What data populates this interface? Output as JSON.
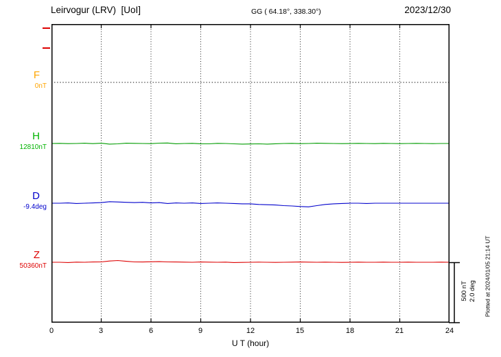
{
  "chart_data": {
    "type": "line",
    "title": "Leirvogur (LRV)  [UoI]",
    "station_coords": "GG ( 64.18°, 338.30°)",
    "date": "2023/12/30",
    "xlabel": "U T (hour)",
    "xlim": [
      0,
      24
    ],
    "x_ticks": [
      0,
      3,
      6,
      9,
      12,
      15,
      18,
      21,
      24
    ],
    "x_step_hours": 0.5,
    "grid": "dotted vertical lines every 3 hours",
    "legend_position": "left margin channel labels",
    "plot_note": "Plotted at 2024/01/05 21:14 UT",
    "scale_bar": {
      "nT": 500,
      "deg": 2.0,
      "label_nT": "500 nT",
      "label_deg": "2.0 deg"
    },
    "marks": {
      "left_axis_tick_color": "#dd0000"
    },
    "values_are": "deviation from baseline_value, sampled every 0.5 hour from 0 to 24 UT",
    "series": [
      {
        "name": "F",
        "unit": "nT",
        "baseline_value": 0,
        "baseline_label": "0nT",
        "label_color": "#ffa500",
        "trace_color": "#000000",
        "trace_style": "dotted",
        "values": [
          0,
          0,
          0,
          0,
          0,
          0,
          0,
          0,
          0,
          0,
          0,
          0,
          0,
          0,
          0,
          0,
          0,
          0,
          0,
          0,
          0,
          0,
          0,
          0,
          0,
          0,
          0,
          0,
          0,
          0,
          0,
          0,
          0,
          0,
          0,
          0,
          0,
          0,
          0,
          0,
          0,
          0,
          0,
          0,
          0,
          0,
          0,
          0,
          0
        ]
      },
      {
        "name": "H",
        "unit": "nT",
        "baseline_value": 12810,
        "baseline_label": "12810nT",
        "label_color": "#00b300",
        "trace_color": "#009c00",
        "trace_style": "solid",
        "values": [
          0,
          1,
          -1,
          0,
          2,
          -1,
          2,
          -5,
          -3,
          2,
          1,
          0,
          -1,
          3,
          4,
          -2,
          0,
          1,
          -2,
          -3,
          1,
          0,
          -3,
          -5,
          -4,
          -3,
          -5,
          -2,
          0,
          1,
          -1,
          0,
          2,
          1,
          0,
          -1,
          0,
          1,
          0,
          -1,
          1,
          0,
          -1,
          0,
          1,
          0,
          -1,
          0,
          0
        ]
      },
      {
        "name": "D",
        "unit": "deg",
        "baseline_value": -9.4,
        "baseline_label": "-9.4deg",
        "label_color": "#0000cc",
        "trace_color": "#0000cc",
        "trace_style": "solid",
        "values": [
          0,
          0,
          0.01,
          -0.01,
          0,
          0.01,
          0.02,
          0.05,
          0.04,
          0.03,
          0.02,
          0.03,
          0.01,
          0.02,
          -0.01,
          0.01,
          0,
          0.01,
          -0.01,
          0,
          0.01,
          0,
          -0.01,
          -0.02,
          -0.02,
          -0.04,
          -0.05,
          -0.06,
          -0.08,
          -0.09,
          -0.11,
          -0.12,
          -0.08,
          -0.04,
          -0.02,
          -0.01,
          0,
          0,
          -0.01,
          0,
          0,
          0,
          0,
          0,
          0,
          0,
          0,
          0,
          0
        ]
      },
      {
        "name": "Z",
        "unit": "nT",
        "baseline_value": 50360,
        "baseline_label": "50360nT",
        "label_color": "#dd0000",
        "trace_color": "#dd0000",
        "trace_style": "solid",
        "values": [
          0,
          0,
          -2,
          1,
          0,
          2,
          3,
          10,
          14,
          8,
          3,
          2,
          4,
          5,
          3,
          2,
          1,
          0,
          2,
          1,
          0,
          1,
          -2,
          -1,
          0,
          1,
          0,
          -1,
          0,
          1,
          2,
          1,
          0,
          1,
          0,
          -1,
          0,
          1,
          0,
          0,
          1,
          0,
          0,
          1,
          0,
          0,
          0,
          1,
          0
        ]
      }
    ]
  }
}
